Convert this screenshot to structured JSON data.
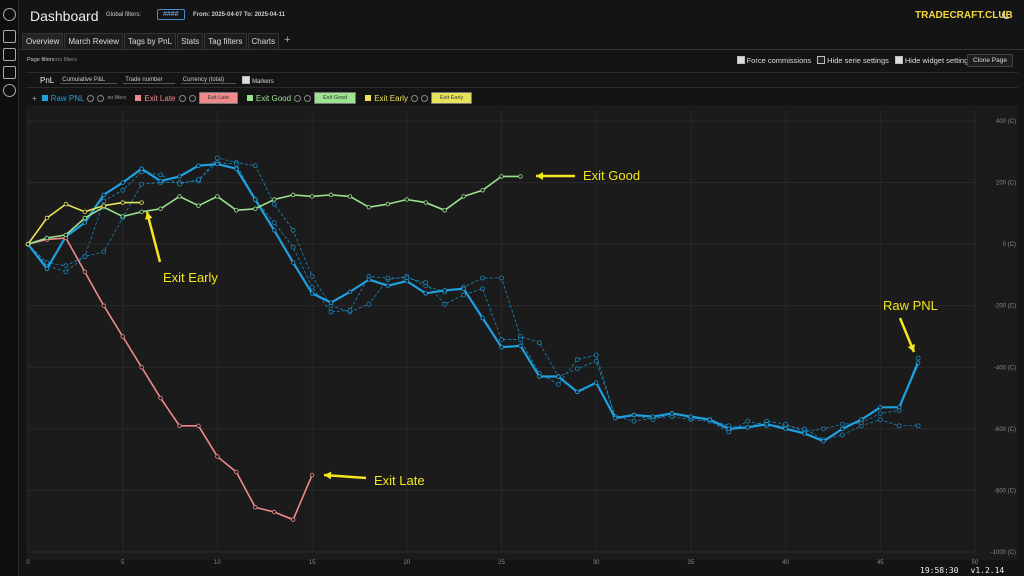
{
  "header": {
    "title": "Dashboard",
    "global_filters_label": "Global filters:",
    "filter_badge": "####",
    "date_range": "From: 2025-04-07 To: 2025-04-11",
    "brand": "TRADECRAFT.CLUB"
  },
  "tabs": [
    "Overview",
    "March Review",
    "Tags by PnL",
    "Stats",
    "Tag filters",
    "Charts"
  ],
  "toolbar": {
    "page_filters_label": "Page filters:",
    "page_filters_value": "no filters",
    "options": [
      {
        "label": "Force commissions",
        "checked": true
      },
      {
        "label": "Hide serie settings",
        "checked": false
      },
      {
        "label": "Hide widget settings",
        "checked": true
      }
    ],
    "button": "Clone Page"
  },
  "widget": {
    "title": "PnL",
    "selects": [
      "Cumulative P&L",
      "Trade number",
      "Currency (total)"
    ],
    "markers": "Markers",
    "no_filters": "no filters"
  },
  "chart_data": {
    "type": "line",
    "xlim": [
      0,
      50
    ],
    "ylim": [
      -1000,
      400
    ],
    "xticks": [
      0,
      5,
      10,
      15,
      20,
      25,
      30,
      35,
      40,
      45,
      50
    ],
    "yticks": [
      {
        "value": 400,
        "label": "400 (C)"
      },
      {
        "value": 200,
        "label": "200 (C)"
      },
      {
        "value": 0,
        "label": "0 (C)"
      },
      {
        "value": -200,
        "label": "-200 (C)"
      },
      {
        "value": -400,
        "label": "-400 (C)"
      },
      {
        "value": -600,
        "label": "-600 (C)"
      },
      {
        "value": -800,
        "label": "-800 (C)"
      },
      {
        "value": -1000,
        "label": "-1000 (C)"
      }
    ],
    "grid": true,
    "series": [
      {
        "color": "#1a8ac0",
        "dashed": true,
        "values": [
          0,
          -70,
          -90,
          -40,
          -25,
          85,
          195,
          200,
          200,
          205,
          280,
          265,
          255,
          130,
          45,
          -105,
          -200,
          -220,
          -195,
          -115,
          -105,
          -135,
          -155,
          -140,
          -110,
          -110,
          -300,
          -320,
          -430,
          -405,
          -380,
          -560,
          -575,
          -565,
          -560,
          -570,
          -575,
          -610,
          -575,
          -590,
          -590,
          -600,
          -635,
          -620,
          -590,
          -570,
          -590,
          -590
        ]
      },
      {
        "color": "#1a8ac0",
        "dashed": true,
        "values": [
          0,
          -60,
          -70,
          -40,
          140,
          175,
          235,
          225,
          195,
          210,
          265,
          260,
          145,
          70,
          -10,
          -140,
          -220,
          -215,
          -105,
          -110,
          -110,
          -125,
          -195,
          -165,
          -145,
          -310,
          -310,
          -420,
          -455,
          -375,
          -360,
          -560,
          -555,
          -570,
          -550,
          -565,
          -570,
          -590,
          -595,
          -575,
          -585,
          -610,
          -600,
          -585,
          -580,
          -550,
          -540,
          -370
        ]
      },
      {
        "name": "Raw PNL",
        "color": "#1fa0e0",
        "values": [
          0,
          -80,
          25,
          70,
          160,
          200,
          245,
          205,
          220,
          255,
          260,
          245,
          145,
          45,
          -60,
          -160,
          -190,
          -155,
          -115,
          -135,
          -120,
          -160,
          -150,
          -145,
          -240,
          -335,
          -330,
          -430,
          -430,
          -480,
          -450,
          -565,
          -555,
          -560,
          -550,
          -560,
          -570,
          -600,
          -595,
          -585,
          -600,
          -615,
          -640,
          -600,
          -570,
          -530,
          -530,
          -385
        ]
      },
      {
        "name": "Exit Late",
        "color": "#f08a8a",
        "values": [
          0,
          15,
          20,
          -90,
          -200,
          -300,
          -400,
          -500,
          -590,
          -590,
          -690,
          -740,
          -855,
          -870,
          -895,
          -750
        ]
      },
      {
        "name": "Exit Good",
        "color": "#9be38f",
        "values": [
          0,
          20,
          30,
          85,
          120,
          90,
          105,
          115,
          155,
          125,
          155,
          110,
          115,
          145,
          160,
          155,
          160,
          155,
          120,
          130,
          145,
          135,
          110,
          155,
          175,
          220,
          220
        ]
      },
      {
        "name": "Exit Early",
        "color": "#e8e35a",
        "values": [
          0,
          85,
          130,
          105,
          125,
          135,
          135
        ]
      }
    ],
    "annotations": [
      {
        "text": "Exit Good"
      },
      {
        "text": "Exit Early"
      },
      {
        "text": "Raw PNL"
      },
      {
        "text": "Exit Late"
      }
    ]
  },
  "status": {
    "time": "19:58:30",
    "version": "v1.2.14"
  }
}
